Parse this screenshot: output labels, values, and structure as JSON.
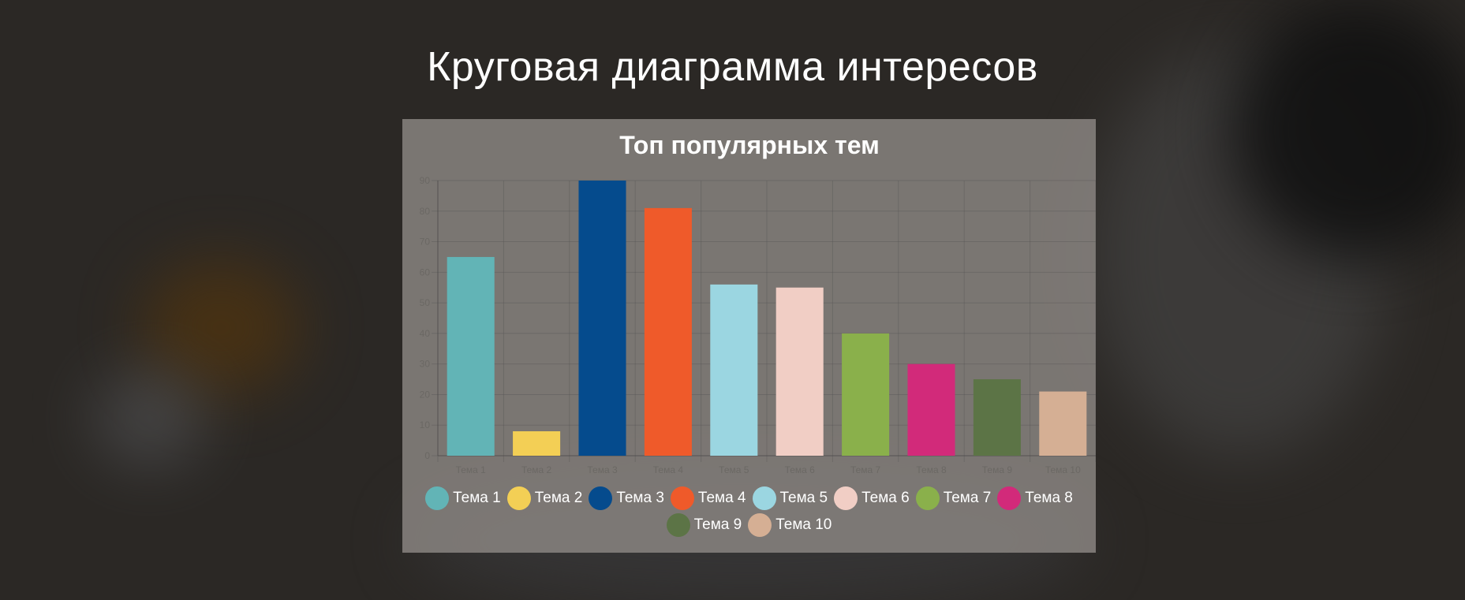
{
  "page": {
    "title": "Круговая диаграмма интересов"
  },
  "chart_data": {
    "type": "bar",
    "title": "Топ популярных тем",
    "xlabel": "",
    "ylabel": "",
    "categories": [
      "Тема 1",
      "Тема 2",
      "Тема 3",
      "Тема 4",
      "Тема 5",
      "Тема 6",
      "Тема 7",
      "Тема 8",
      "Тема 9",
      "Тема 10"
    ],
    "values": [
      65,
      8,
      90,
      81,
      56,
      55,
      40,
      30,
      25,
      21
    ],
    "colors": [
      "#62b4b6",
      "#f3cf55",
      "#054b8d",
      "#ef5a2a",
      "#9bd6e1",
      "#f1cec5",
      "#8ab04b",
      "#d22a7a",
      "#5c7446",
      "#d5af94"
    ],
    "ylim": [
      0,
      90
    ],
    "yticks": [
      0,
      10,
      20,
      30,
      40,
      50,
      60,
      70,
      80,
      90
    ],
    "grid": true,
    "legend_position": "bottom"
  }
}
